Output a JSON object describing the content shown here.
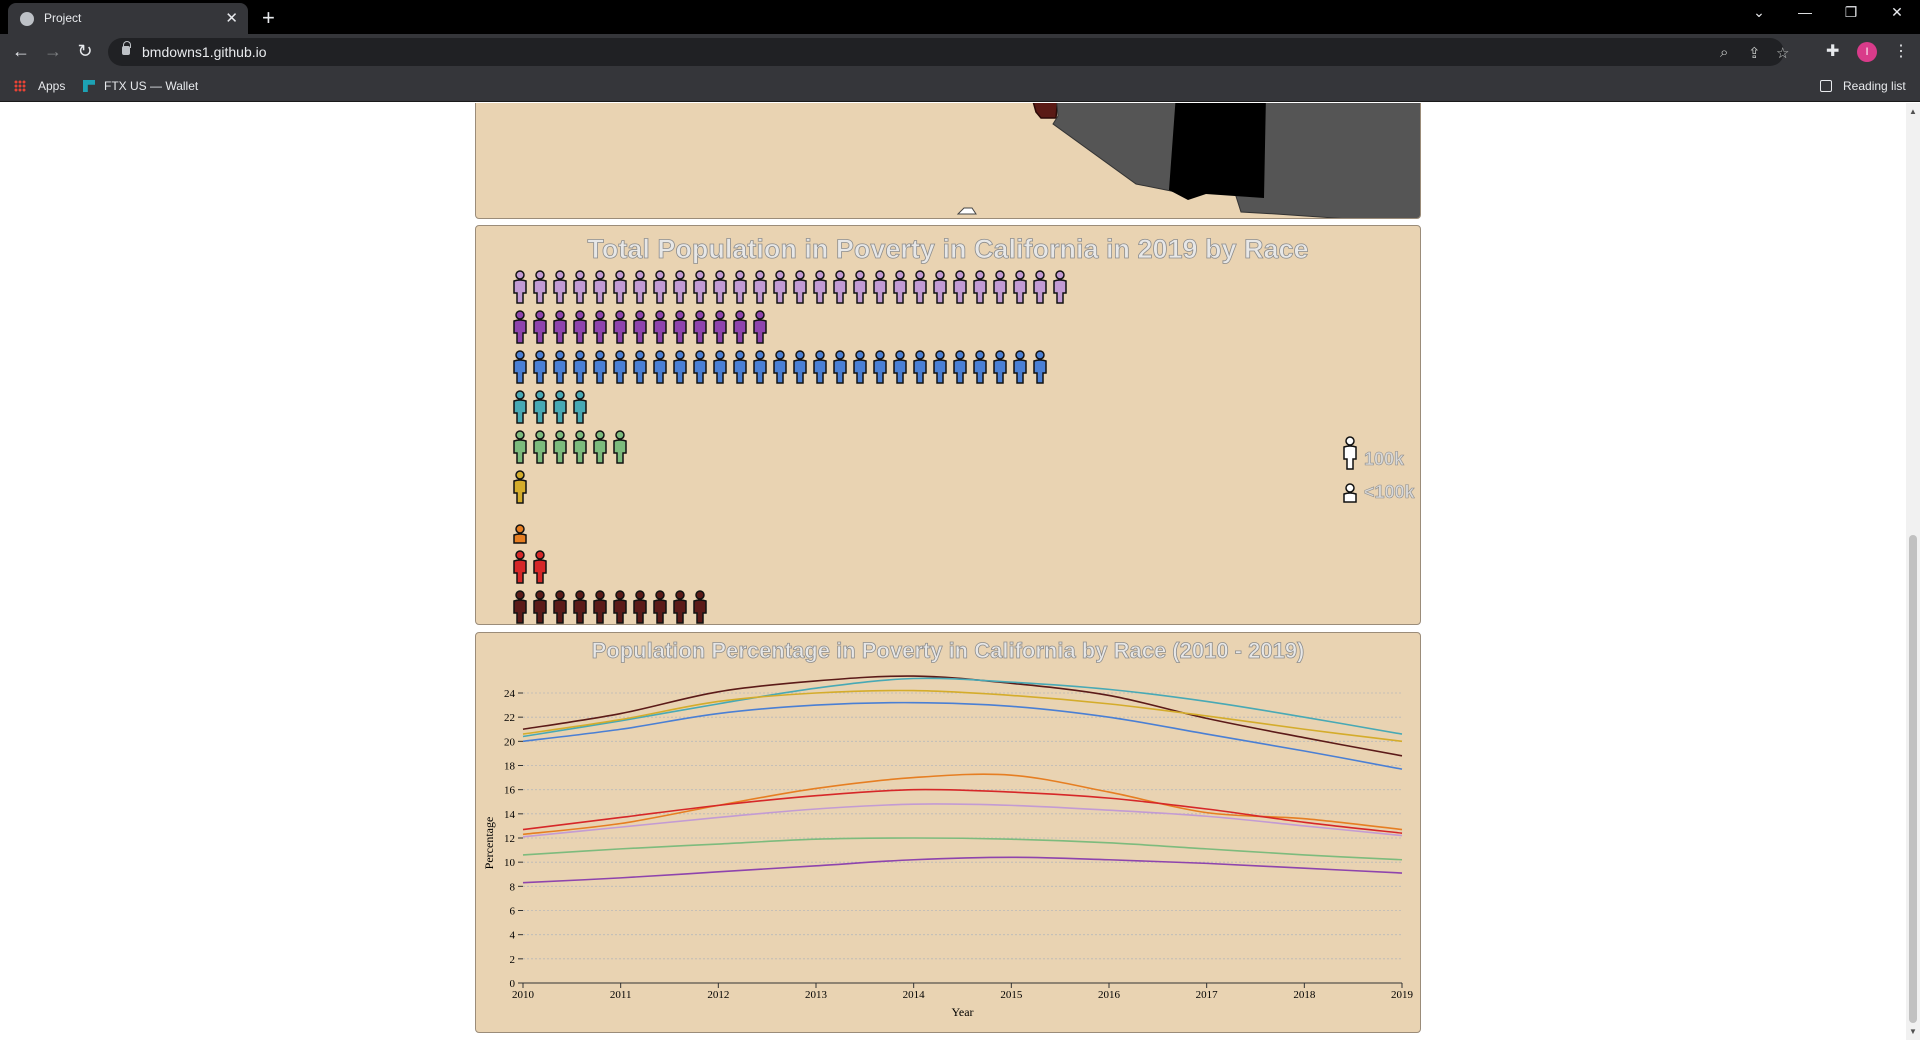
{
  "browser": {
    "tab_title": "Project",
    "url": "bmdowns1.github.io",
    "bookmarks": [
      "Apps",
      "FTX US — Wallet"
    ],
    "reading_list": "Reading list",
    "avatar_letter": "I"
  },
  "pictograph": {
    "title": "Total Population in Poverty in California in 2019 by Race",
    "unit_full": "100k",
    "unit_partial": "<100k",
    "rows": [
      {
        "color": "#c39bd3",
        "full": 28,
        "partial": 0
      },
      {
        "color": "#8e44ad",
        "full": 13,
        "partial": 0
      },
      {
        "color": "#4a7fd4",
        "full": 27,
        "partial": 0
      },
      {
        "color": "#48a9b5",
        "full": 4,
        "partial": 0
      },
      {
        "color": "#7dbb7d",
        "full": 6,
        "partial": 0
      },
      {
        "color": "#d4ac2b",
        "full": 1,
        "partial": 0
      },
      {
        "color": "#e67e22",
        "full": 0,
        "partial": 1
      },
      {
        "color": "#d62728",
        "full": 2,
        "partial": 0
      },
      {
        "color": "#5b1a18",
        "full": 10,
        "partial": 0
      }
    ]
  },
  "chart_data": {
    "type": "line",
    "title": "Population Percentage in Poverty in California by Race (2010 - 2019)",
    "xlabel": "Year",
    "ylabel": "Percentage",
    "x": [
      2010,
      2011,
      2012,
      2013,
      2014,
      2015,
      2016,
      2017,
      2018,
      2019
    ],
    "ylim": [
      0,
      24
    ],
    "yticks": [
      0,
      2,
      4,
      6,
      8,
      10,
      12,
      14,
      16,
      18,
      20,
      22,
      24
    ],
    "grid": true,
    "series": [
      {
        "color": "#5b1a18",
        "values": [
          21.0,
          22.3,
          24.1,
          25.0,
          25.4,
          24.8,
          23.8,
          21.9,
          20.3,
          18.8
        ]
      },
      {
        "color": "#48a9b5",
        "values": [
          20.4,
          21.7,
          23.1,
          24.4,
          25.2,
          24.9,
          24.3,
          23.3,
          22.0,
          20.6
        ]
      },
      {
        "color": "#d4ac2b",
        "values": [
          20.6,
          21.8,
          23.3,
          24.0,
          24.2,
          23.8,
          23.1,
          22.1,
          21.0,
          20.0
        ]
      },
      {
        "color": "#4a7fd4",
        "values": [
          20.0,
          21.0,
          22.3,
          23.0,
          23.2,
          22.9,
          22.0,
          20.6,
          19.2,
          17.7
        ]
      },
      {
        "color": "#e67e22",
        "values": [
          12.3,
          13.2,
          14.7,
          16.1,
          17.0,
          17.2,
          15.8,
          14.1,
          13.6,
          12.7
        ]
      },
      {
        "color": "#d62728",
        "values": [
          12.7,
          13.7,
          14.7,
          15.5,
          16.0,
          15.8,
          15.3,
          14.4,
          13.3,
          12.4
        ]
      },
      {
        "color": "#c39bd3",
        "values": [
          12.1,
          12.9,
          13.7,
          14.4,
          14.8,
          14.7,
          14.3,
          13.8,
          13.0,
          12.2
        ]
      },
      {
        "color": "#7dbb7d",
        "values": [
          10.6,
          11.1,
          11.5,
          11.9,
          12.0,
          11.9,
          11.6,
          11.1,
          10.6,
          10.2
        ]
      },
      {
        "color": "#8e44ad",
        "values": [
          8.3,
          8.7,
          9.2,
          9.7,
          10.2,
          10.4,
          10.2,
          9.9,
          9.5,
          9.1
        ]
      }
    ]
  }
}
